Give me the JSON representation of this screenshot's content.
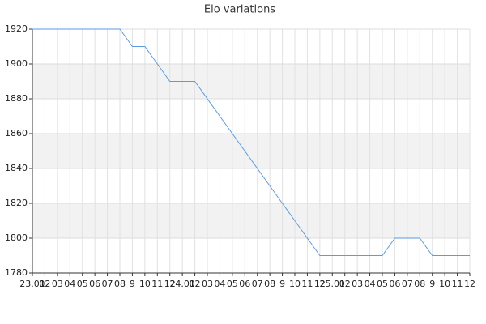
{
  "chart_data": {
    "type": "line",
    "title": "Elo variations",
    "categories": [
      "23.01",
      "02",
      "03",
      "04",
      "05",
      "06",
      "07",
      "08",
      "9",
      "10",
      "11",
      "12",
      "24.01",
      "02",
      "03",
      "04",
      "05",
      "06",
      "07",
      "08",
      "9",
      "10",
      "11",
      "12",
      "25.01",
      "02",
      "03",
      "04",
      "05",
      "06",
      "07",
      "08",
      "9",
      "10",
      "11",
      "12"
    ],
    "series": [
      {
        "color": "#5b9be0",
        "values": [
          1920,
          1920,
          1920,
          1920,
          1920,
          1920,
          1920,
          1920,
          1910,
          1910,
          1900,
          1890,
          1890,
          1890,
          1880,
          1870,
          1860,
          1850,
          1840,
          1830,
          1820,
          1810,
          1800,
          1790,
          1790,
          1790,
          1790,
          1790,
          1790,
          1800,
          1800,
          1800,
          1790,
          1790,
          1790,
          1790
        ]
      }
    ],
    "ylim": [
      1780,
      1920
    ],
    "yticks": [
      1780,
      1800,
      1820,
      1840,
      1860,
      1880,
      1900,
      1920
    ],
    "grid": true,
    "alternate_bands": true
  }
}
